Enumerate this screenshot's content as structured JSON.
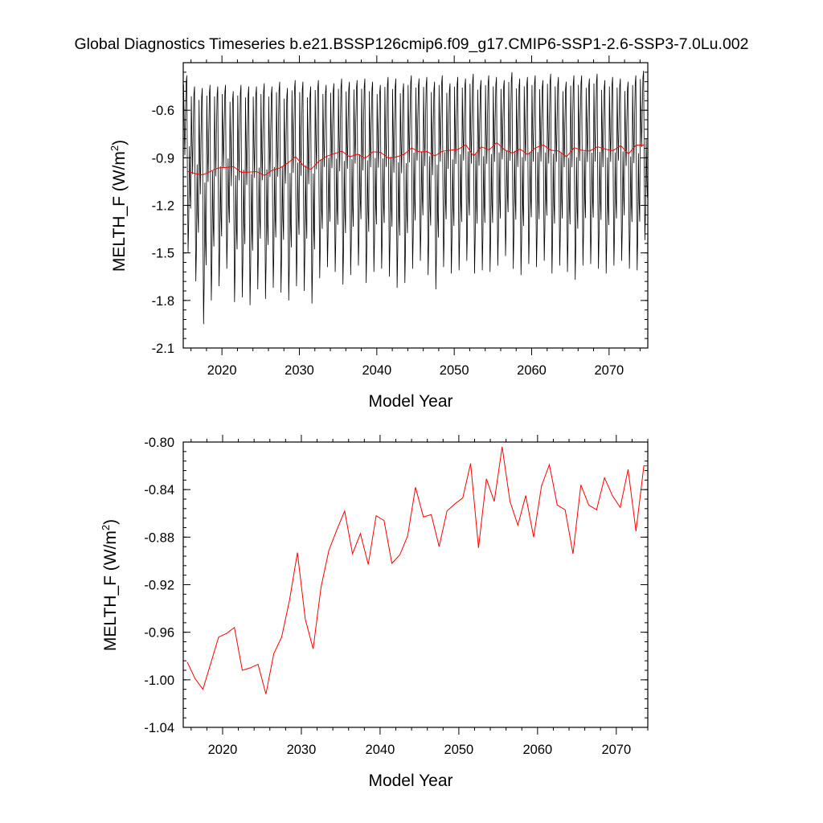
{
  "title": "Global Diagnostics Timeseries b.e21.BSSP126cmip6.f09_g17.CMIP6-SSP1-2.6-SSP3-7.0Lu.002",
  "chart_data": [
    {
      "type": "line",
      "xlabel": "Model Year",
      "ylabel_main": "MELTH_F (W/m",
      "ylabel_sup": "2",
      "ylabel_tail": ")",
      "xlim": [
        2015,
        2075
      ],
      "ylim": [
        -2.1,
        -0.3
      ],
      "x_ticks": [
        2020,
        2030,
        2040,
        2050,
        2060,
        2070
      ],
      "y_ticks": [
        -0.6,
        -0.9,
        -1.2,
        -1.5,
        -1.8,
        -2.1
      ],
      "y_tick_labels": [
        "-0.6",
        "-0.9",
        "-1.2",
        "-1.5",
        "-1.8",
        "-2.1"
      ],
      "monthly_series": {
        "color": "#000000",
        "monthly_maxima": [
          -0.38,
          -0.45,
          -0.46,
          -0.44,
          -0.45,
          -0.44,
          -0.48,
          -0.44,
          -0.45,
          -0.45,
          -0.43,
          -0.45,
          -0.42,
          -0.46,
          -0.41,
          -0.42,
          -0.45,
          -0.41,
          -0.44,
          -0.43,
          -0.4,
          -0.42,
          -0.41,
          -0.4,
          -0.42,
          -0.44,
          -0.39,
          -0.4,
          -0.43,
          -0.38,
          -0.4,
          -0.39,
          -0.42,
          -0.38,
          -0.43,
          -0.39,
          -0.4,
          -0.37,
          -0.41,
          -0.38,
          -0.39,
          -0.41,
          -0.36,
          -0.4,
          -0.39,
          -0.38,
          -0.41,
          -0.37,
          -0.39,
          -0.42,
          -0.38,
          -0.38,
          -0.4,
          -0.37,
          -0.41,
          -0.39,
          -0.4,
          -0.42,
          -0.38,
          -0.35
        ],
        "monthly_minima": [
          -1.5,
          -1.68,
          -1.95,
          -1.8,
          -1.71,
          -1.6,
          -1.81,
          -1.78,
          -1.83,
          -1.73,
          -1.79,
          -1.72,
          -1.75,
          -1.8,
          -1.71,
          -1.74,
          -1.82,
          -1.66,
          -1.59,
          -1.62,
          -1.7,
          -1.64,
          -1.58,
          -1.69,
          -1.62,
          -1.6,
          -1.65,
          -1.72,
          -1.69,
          -1.6,
          -1.55,
          -1.64,
          -1.73,
          -1.59,
          -1.63,
          -1.61,
          -1.55,
          -1.63,
          -1.61,
          -1.62,
          -1.58,
          -1.52,
          -1.6,
          -1.64,
          -1.57,
          -1.59,
          -1.55,
          -1.63,
          -1.58,
          -1.62,
          -1.67,
          -1.58,
          -1.57,
          -1.6,
          -1.63,
          -1.58,
          -1.55,
          -1.6,
          -1.61,
          -1.42
        ]
      },
      "annual_series": {
        "color": "#ff0000",
        "x": [
          2015.5,
          2016.5,
          2017.5,
          2018.5,
          2019.5,
          2020.5,
          2021.5,
          2022.5,
          2023.5,
          2024.5,
          2025.5,
          2026.5,
          2027.5,
          2028.5,
          2029.5,
          2030.5,
          2031.5,
          2032.5,
          2033.5,
          2034.5,
          2035.5,
          2036.5,
          2037.5,
          2038.5,
          2039.5,
          2040.5,
          2041.5,
          2042.5,
          2043.5,
          2044.5,
          2045.5,
          2046.5,
          2047.5,
          2048.5,
          2049.5,
          2050.5,
          2051.5,
          2052.5,
          2053.5,
          2054.5,
          2055.5,
          2056.5,
          2057.5,
          2058.5,
          2059.5,
          2060.5,
          2061.5,
          2062.5,
          2063.5,
          2064.5,
          2065.5,
          2066.5,
          2067.5,
          2068.5,
          2069.5,
          2070.5,
          2071.5,
          2072.5,
          2073.5,
          2074.5
        ],
        "y": [
          -0.985,
          -0.999,
          -1.008,
          -0.986,
          -0.964,
          -0.961,
          -0.956,
          -0.992,
          -0.99,
          -0.987,
          -1.012,
          -0.978,
          -0.964,
          -0.933,
          -0.893,
          -0.949,
          -0.974,
          -0.922,
          -0.891,
          -0.874,
          -0.858,
          -0.894,
          -0.877,
          -0.903,
          -0.862,
          -0.866,
          -0.902,
          -0.895,
          -0.879,
          -0.838,
          -0.863,
          -0.861,
          -0.888,
          -0.858,
          -0.852,
          -0.847,
          -0.818,
          -0.889,
          -0.831,
          -0.85,
          -0.804,
          -0.85,
          -0.87,
          -0.845,
          -0.88,
          -0.837,
          -0.819,
          -0.853,
          -0.857,
          -0.894,
          -0.836,
          -0.853,
          -0.857,
          -0.83,
          -0.845,
          -0.855,
          -0.823,
          -0.875,
          -0.82,
          -0.82
        ]
      }
    },
    {
      "type": "line",
      "xlabel": "Model Year",
      "ylabel_main": "MELTH_F (W/m",
      "ylabel_sup": "2",
      "ylabel_tail": ")",
      "xlim": [
        2015,
        2074
      ],
      "ylim": [
        -1.04,
        -0.8
      ],
      "x_ticks": [
        2020,
        2030,
        2040,
        2050,
        2060,
        2070
      ],
      "y_ticks": [
        -0.8,
        -0.84,
        -0.88,
        -0.92,
        -0.96,
        -1.0,
        -1.04
      ],
      "y_tick_labels": [
        "-0.80",
        "-0.84",
        "-0.88",
        "-0.92",
        "-0.96",
        "-1.00",
        "-1.04"
      ],
      "series": [
        {
          "color": "#ff0000",
          "x": [
            2015.5,
            2016.5,
            2017.5,
            2018.5,
            2019.5,
            2020.5,
            2021.5,
            2022.5,
            2023.5,
            2024.5,
            2025.5,
            2026.5,
            2027.5,
            2028.5,
            2029.5,
            2030.5,
            2031.5,
            2032.5,
            2033.5,
            2034.5,
            2035.5,
            2036.5,
            2037.5,
            2038.5,
            2039.5,
            2040.5,
            2041.5,
            2042.5,
            2043.5,
            2044.5,
            2045.5,
            2046.5,
            2047.5,
            2048.5,
            2049.5,
            2050.5,
            2051.5,
            2052.5,
            2053.5,
            2054.5,
            2055.5,
            2056.5,
            2057.5,
            2058.5,
            2059.5,
            2060.5,
            2061.5,
            2062.5,
            2063.5,
            2064.5,
            2065.5,
            2066.5,
            2067.5,
            2068.5,
            2069.5,
            2070.5,
            2071.5,
            2072.5,
            2073.5,
            2074.5
          ],
          "y": [
            -0.985,
            -0.999,
            -1.008,
            -0.986,
            -0.964,
            -0.961,
            -0.956,
            -0.992,
            -0.99,
            -0.987,
            -1.012,
            -0.978,
            -0.964,
            -0.933,
            -0.893,
            -0.949,
            -0.974,
            -0.922,
            -0.891,
            -0.874,
            -0.858,
            -0.894,
            -0.877,
            -0.903,
            -0.862,
            -0.866,
            -0.902,
            -0.895,
            -0.879,
            -0.838,
            -0.863,
            -0.861,
            -0.888,
            -0.858,
            -0.852,
            -0.847,
            -0.818,
            -0.889,
            -0.831,
            -0.85,
            -0.804,
            -0.85,
            -0.87,
            -0.845,
            -0.88,
            -0.837,
            -0.819,
            -0.853,
            -0.857,
            -0.894,
            -0.836,
            -0.853,
            -0.857,
            -0.83,
            -0.845,
            -0.855,
            -0.823,
            -0.875,
            -0.82,
            -0.82
          ]
        }
      ]
    }
  ]
}
